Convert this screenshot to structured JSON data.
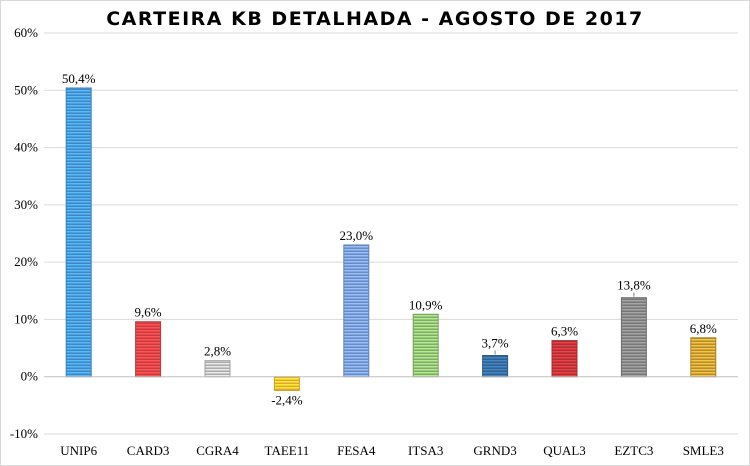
{
  "chart_data": {
    "type": "bar",
    "title": "CARTEIRA KB DETALHADA - AGOSTO DE 2017",
    "categories": [
      "UNIP6",
      "CARD3",
      "CGRA4",
      "TAEE11",
      "FESA4",
      "ITSA3",
      "GRND3",
      "QUAL3",
      "EZTC3",
      "SMLE3"
    ],
    "values": [
      50.4,
      9.6,
      2.8,
      -2.4,
      23.0,
      10.9,
      3.7,
      6.3,
      13.8,
      6.8
    ],
    "value_labels": [
      "50,4%",
      "9,6%",
      "2,8%",
      "-2,4%",
      "23,0%",
      "10,9%",
      "3,7%",
      "6,3%",
      "13,8%",
      "6,8%"
    ],
    "bar_colors": [
      "#4a9fe0",
      "#e8474a",
      "#c8c8c8",
      "#ffc832",
      "#7fa3de",
      "#98c97a",
      "#3a72a8",
      "#c9373c",
      "#8c8c8c",
      "#d2a637"
    ],
    "ylim": [
      -10,
      60
    ],
    "yticks": [
      -10,
      0,
      10,
      20,
      30,
      40,
      50,
      60
    ],
    "ytick_labels": [
      "-10%",
      "0%",
      "10%",
      "20%",
      "30%",
      "40%",
      "50%",
      "60%"
    ],
    "xlabel": "",
    "ylabel": "",
    "grid": true,
    "legend": "none"
  }
}
